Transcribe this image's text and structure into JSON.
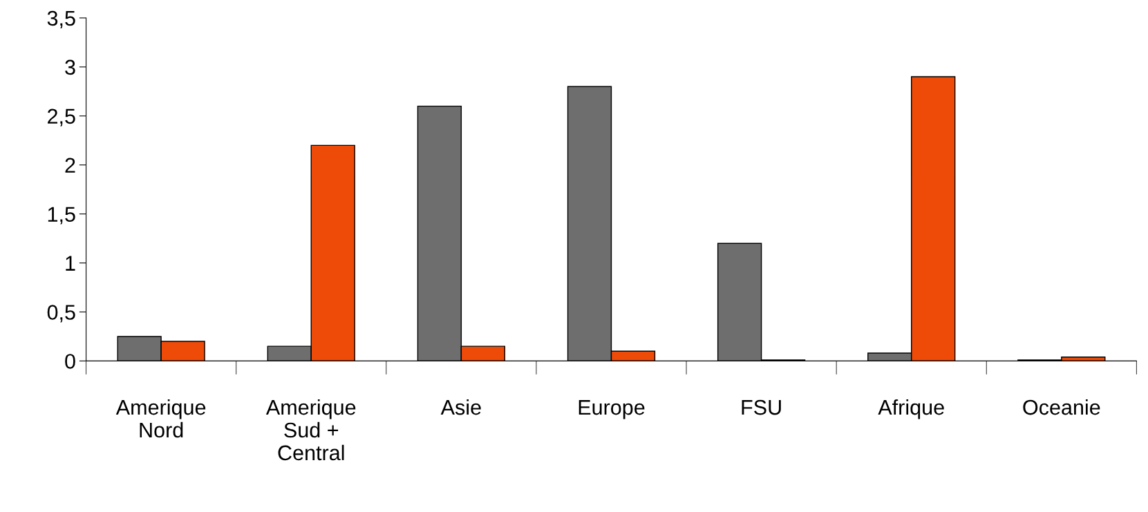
{
  "chart_data": {
    "type": "bar",
    "categories": [
      "Amerique\nNord",
      "Amerique\nSud +\nCentral",
      "Asie",
      "Europe",
      "FSU",
      "Afrique",
      "Oceanie"
    ],
    "series": [
      {
        "color": "#6e6e6e",
        "values": [
          0.25,
          0.15,
          2.6,
          2.8,
          1.2,
          0.08,
          0.01
        ]
      },
      {
        "color": "#ee4a08",
        "values": [
          0.2,
          2.2,
          0.15,
          0.1,
          0.01,
          2.9,
          0.04
        ]
      }
    ],
    "ylim": [
      0,
      3.5
    ],
    "yticks": [
      0,
      {
        "value": 0.5,
        "label": "0,5"
      },
      1,
      {
        "value": 1.5,
        "label": "1,5"
      },
      2,
      {
        "value": 2.5,
        "label": "2,5"
      },
      3,
      {
        "value": 3.5,
        "label": "3,5"
      }
    ],
    "grid": false,
    "legend": false
  }
}
